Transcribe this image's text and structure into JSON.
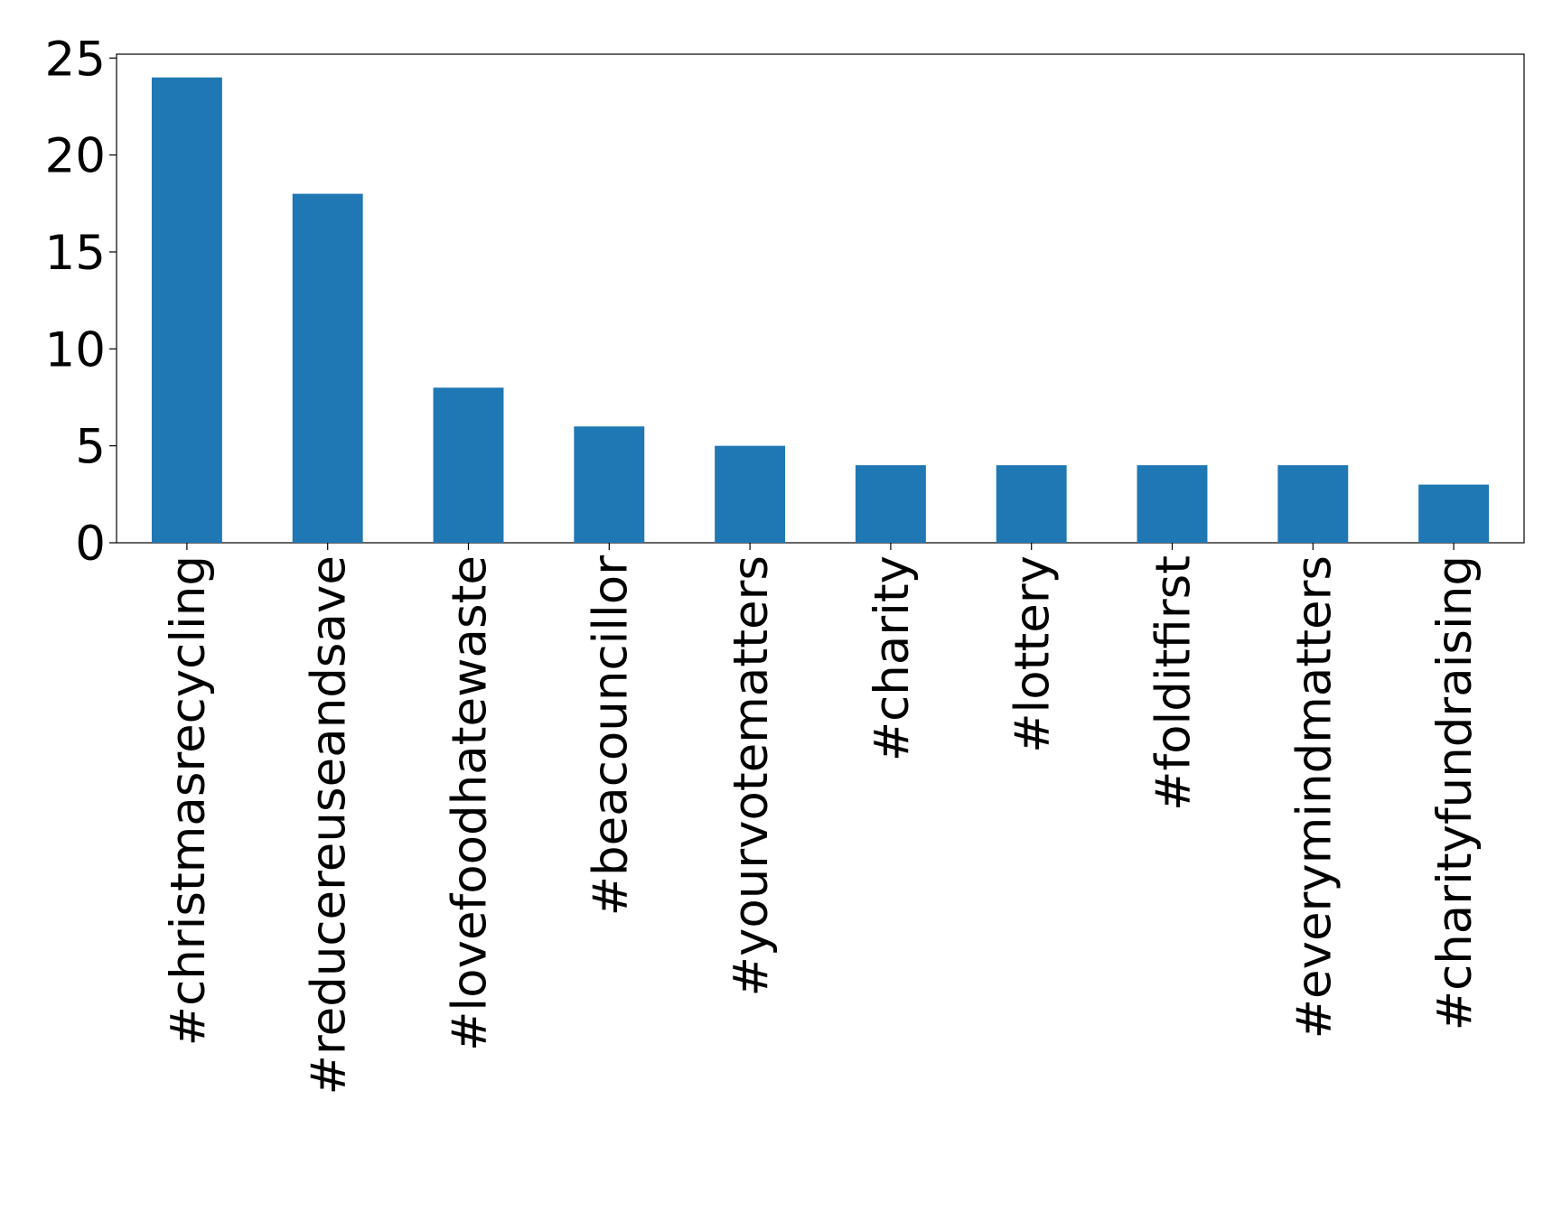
{
  "chart_data": {
    "type": "bar",
    "categories": [
      "#christmasrecycling",
      "#reducereuseandsave",
      "#lovefoodhatewaste",
      "#beacouncillor",
      "#yourvotematters",
      "#charity",
      "#lottery",
      "#folditfirst",
      "#everymindmatters",
      "#charityfundraising"
    ],
    "values": [
      24,
      18,
      8,
      6,
      5,
      4,
      4,
      4,
      4,
      3
    ],
    "color": "#1f77b4",
    "ylim": [
      0,
      25.2
    ],
    "yticks": [
      0,
      5,
      10,
      15,
      20,
      25
    ],
    "grid": false
  }
}
